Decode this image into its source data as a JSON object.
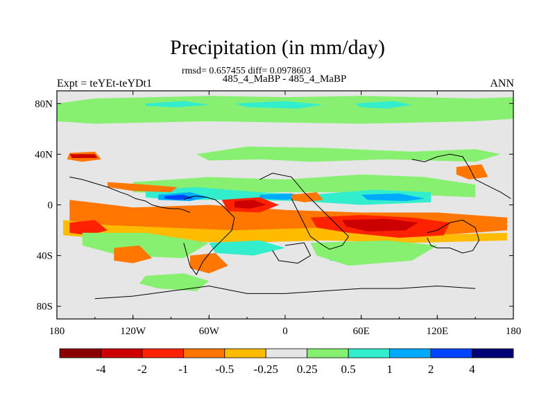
{
  "chart_data": {
    "type": "heatmap",
    "title": "Precipitation (in mm/day)",
    "stats_line": "rmsd= 0.657455 diff= 0.0978603",
    "case_line": "485_4_MaBP - 485_4_MaBP",
    "left_label": "Expt = teYEt-teYDt1",
    "right_label": "ANN",
    "projection": "cylindrical equidistant",
    "xlim": [
      -180,
      180
    ],
    "ylim": [
      -90,
      90
    ],
    "x_ticks": [
      {
        "value": -180,
        "label": "180"
      },
      {
        "value": -120,
        "label": "120W"
      },
      {
        "value": -60,
        "label": "60W"
      },
      {
        "value": 0,
        "label": "0"
      },
      {
        "value": 60,
        "label": "60E"
      },
      {
        "value": 120,
        "label": "120E"
      },
      {
        "value": 180,
        "label": "180"
      }
    ],
    "y_ticks": [
      {
        "value": 80,
        "label": "80N"
      },
      {
        "value": 40,
        "label": "40N"
      },
      {
        "value": 0,
        "label": "0"
      },
      {
        "value": -40,
        "label": "40S"
      },
      {
        "value": -80,
        "label": "80S"
      }
    ],
    "colorbar": {
      "levels": [
        {
          "value": -4,
          "label": "-4"
        },
        {
          "value": -2,
          "label": "-2"
        },
        {
          "value": -1,
          "label": "-1"
        },
        {
          "value": -0.5,
          "label": "-0.5"
        },
        {
          "value": -0.25,
          "label": "-0.25"
        },
        {
          "value": 0.25,
          "label": "0.25"
        },
        {
          "value": 0.5,
          "label": "0.5"
        },
        {
          "value": 1,
          "label": "1"
        },
        {
          "value": 2,
          "label": "2"
        },
        {
          "value": 4,
          "label": "4"
        }
      ],
      "colors": [
        "#8b0000",
        "#cc0000",
        "#ff2200",
        "#ff7700",
        "#ffbb00",
        "#e6e6e6",
        "#88f070",
        "#33eecc",
        "#00aaff",
        "#0044ff",
        "#000077"
      ]
    },
    "regions": [
      {
        "name": "arctic-band",
        "bin": 6,
        "lon": [
          -150,
          -60,
          0,
          60,
          150,
          180,
          180,
          150,
          60,
          0,
          -60,
          -150,
          -180,
          -180
        ],
        "lat": [
          84,
          86,
          85,
          86,
          84,
          85,
          68,
          66,
          64,
          65,
          66,
          64,
          66,
          80
        ]
      },
      {
        "name": "arctic-cyan-1",
        "bin": 7,
        "lon": [
          -110,
          -80,
          -60,
          -85,
          -110
        ],
        "lat": [
          80,
          82,
          79,
          77,
          78
        ]
      },
      {
        "name": "arctic-cyan-2",
        "bin": 7,
        "lon": [
          -40,
          0,
          30,
          10,
          -30
        ],
        "lat": [
          80,
          82,
          79,
          76,
          77
        ]
      },
      {
        "name": "arctic-cyan-3",
        "bin": 7,
        "lon": [
          55,
          85,
          100,
          80,
          60
        ],
        "lat": [
          80,
          82,
          79,
          76,
          77
        ]
      },
      {
        "name": "midlat-nh-green",
        "bin": 6,
        "lon": [
          -70,
          -30,
          30,
          100,
          150,
          170,
          150,
          80,
          20,
          -20,
          -60
        ],
        "lat": [
          40,
          46,
          45,
          42,
          44,
          40,
          34,
          36,
          34,
          36,
          35
        ]
      },
      {
        "name": "nh-green-band",
        "bin": 6,
        "lon": [
          -120,
          -60,
          0,
          60,
          110,
          150,
          150,
          100,
          40,
          -20,
          -80,
          -120
        ],
        "lat": [
          18,
          22,
          20,
          24,
          22,
          16,
          6,
          8,
          10,
          10,
          9,
          10
        ]
      },
      {
        "name": "nh-cyan-band",
        "bin": 7,
        "lon": [
          -110,
          -70,
          -20,
          20,
          70,
          115,
          115,
          60,
          10,
          -40,
          -90,
          -110
        ],
        "lat": [
          12,
          14,
          10,
          8,
          12,
          10,
          2,
          0,
          3,
          4,
          4,
          6
        ]
      },
      {
        "name": "nh-blue-1",
        "bin": 8,
        "lon": [
          -100,
          -75,
          -60,
          -75,
          -100
        ],
        "lat": [
          8,
          10,
          6,
          3,
          4
        ]
      },
      {
        "name": "nh-blue-2",
        "bin": 8,
        "lon": [
          -20,
          5,
          15,
          0,
          -20
        ],
        "lat": [
          8,
          9,
          6,
          4,
          5
        ]
      },
      {
        "name": "nh-blue-3",
        "bin": 8,
        "lon": [
          60,
          90,
          110,
          95,
          65
        ],
        "lat": [
          8,
          9,
          5,
          3,
          4
        ]
      },
      {
        "name": "nh-deep-blue",
        "bin": 9,
        "lon": [
          -95,
          -80,
          -72,
          -85,
          -95
        ],
        "lat": [
          7,
          8,
          5,
          4,
          5
        ]
      },
      {
        "name": "equatorial-orange",
        "bin": 3,
        "lon": [
          -170,
          -120,
          -60,
          0,
          60,
          120,
          175,
          175,
          120,
          40,
          -20,
          -80,
          -140,
          -170
        ],
        "lat": [
          4,
          -2,
          0,
          -4,
          -6,
          -6,
          -10,
          -20,
          -24,
          -22,
          -26,
          -24,
          -22,
          -14
        ]
      },
      {
        "name": "equatorial-yellow",
        "bin": 4,
        "lon": [
          -175,
          -140,
          -90,
          -40,
          30,
          100,
          175,
          175,
          100,
          30,
          -40,
          -100,
          -150,
          -175
        ],
        "lat": [
          -12,
          -16,
          -18,
          -20,
          -18,
          -24,
          -22,
          -28,
          -30,
          -28,
          -30,
          -28,
          -26,
          -24
        ]
      },
      {
        "name": "indian-red",
        "bin": 2,
        "lon": [
          20,
          60,
          100,
          130,
          125,
          90,
          50,
          25
        ],
        "lat": [
          -10,
          -8,
          -10,
          -14,
          -24,
          -26,
          -22,
          -18
        ]
      },
      {
        "name": "indian-darkred",
        "bin": 1,
        "lon": [
          45,
          80,
          105,
          95,
          65,
          48
        ],
        "lat": [
          -12,
          -11,
          -14,
          -20,
          -21,
          -17
        ]
      },
      {
        "name": "atlantic-red",
        "bin": 2,
        "lon": [
          -50,
          -20,
          -5,
          -20,
          -45
        ],
        "lat": [
          4,
          6,
          0,
          -6,
          -5
        ]
      },
      {
        "name": "atlantic-darkred",
        "bin": 1,
        "lon": [
          -40,
          -25,
          -15,
          -28,
          -40
        ],
        "lat": [
          3,
          4,
          0,
          -3,
          -2
        ]
      },
      {
        "name": "east-pacific-red",
        "bin": 2,
        "lon": [
          -170,
          -150,
          -140,
          -155,
          -170
        ],
        "lat": [
          -14,
          -12,
          -20,
          -24,
          -22
        ]
      },
      {
        "name": "sh-cyan-1",
        "bin": 7,
        "lon": [
          -60,
          -20,
          0,
          -25,
          -55
        ],
        "lat": [
          -30,
          -28,
          -34,
          -40,
          -38
        ]
      },
      {
        "name": "sh-cyan-2",
        "bin": 7,
        "lon": [
          35,
          60,
          75,
          55,
          35
        ],
        "lat": [
          -36,
          -34,
          -42,
          -46,
          -44
        ]
      },
      {
        "name": "sh-green-1",
        "bin": 6,
        "lon": [
          -160,
          -110,
          -60,
          -80,
          -130,
          -160
        ],
        "lat": [
          -22,
          -22,
          -30,
          -42,
          -40,
          -32
        ]
      },
      {
        "name": "sh-green-2",
        "bin": 6,
        "lon": [
          20,
          80,
          120,
          100,
          50,
          25
        ],
        "lat": [
          -30,
          -28,
          -32,
          -44,
          -48,
          -40
        ]
      },
      {
        "name": "sh-orange-1",
        "bin": 3,
        "lon": [
          -135,
          -115,
          -105,
          -120,
          -135
        ],
        "lat": [
          -34,
          -32,
          -42,
          -46,
          -44
        ]
      },
      {
        "name": "sh-orange-2",
        "bin": 3,
        "lon": [
          -75,
          -55,
          -45,
          -60,
          -75
        ],
        "lat": [
          -40,
          -38,
          -48,
          -54,
          -50
        ]
      },
      {
        "name": "southern-green",
        "bin": 6,
        "lon": [
          -110,
          -80,
          -60,
          -70,
          -100,
          -115
        ],
        "lat": [
          -56,
          -54,
          -60,
          -68,
          -66,
          -62
        ]
      },
      {
        "name": "nh-orange-1",
        "bin": 3,
        "lon": [
          -140,
          -110,
          -85,
          -90,
          -120,
          -140
        ],
        "lat": [
          18,
          16,
          14,
          10,
          11,
          14
        ]
      },
      {
        "name": "nh-orange-2",
        "bin": 3,
        "lon": [
          -170,
          -150,
          -145,
          -160,
          -172
        ],
        "lat": [
          41,
          42,
          36,
          34,
          36
        ]
      },
      {
        "name": "nh-darkred",
        "bin": 1,
        "lon": [
          -170,
          -150,
          -148,
          -168
        ],
        "lat": [
          40,
          40,
          37,
          37
        ]
      },
      {
        "name": "w-africa-orange",
        "bin": 3,
        "lon": [
          5,
          25,
          30,
          15,
          5
        ],
        "lat": [
          8,
          10,
          4,
          2,
          4
        ]
      },
      {
        "name": "se-asia-orange",
        "bin": 3,
        "lon": [
          135,
          155,
          160,
          145,
          135
        ],
        "lat": [
          30,
          32,
          22,
          20,
          24
        ]
      }
    ],
    "coastlines": [
      {
        "name": "north-america",
        "lon": [
          -170,
          -160,
          -150,
          -140,
          -130,
          -124,
          -118,
          -110,
          -105,
          -97,
          -90,
          -84,
          -80,
          -75
        ],
        "lat": [
          22,
          20,
          17,
          14,
          10,
          8,
          5,
          3,
          0,
          -2,
          -3,
          -3,
          -4,
          -6
        ]
      },
      {
        "name": "south-america",
        "lon": [
          -80,
          -76,
          -70,
          -62,
          -55,
          -50,
          -45,
          -40,
          -42,
          -50,
          -58,
          -65,
          -70,
          -75,
          -80
        ],
        "lat": [
          4,
          6,
          7,
          6,
          4,
          0,
          -5,
          -10,
          -20,
          -28,
          -36,
          -45,
          -55,
          -48,
          -30
        ]
      },
      {
        "name": "africa",
        "lon": [
          -20,
          -10,
          5,
          15,
          30,
          40,
          50,
          45,
          35,
          30,
          20,
          15,
          10,
          5
        ],
        "lat": [
          20,
          25,
          22,
          10,
          -5,
          -15,
          -25,
          -32,
          -35,
          -32,
          -25,
          -15,
          -5,
          5
        ]
      },
      {
        "name": "asia-east",
        "lon": [
          100,
          110,
          120,
          130,
          140,
          145,
          150,
          160,
          170,
          178
        ],
        "lat": [
          36,
          34,
          38,
          40,
          38,
          30,
          20,
          15,
          10,
          5
        ]
      },
      {
        "name": "australia",
        "lon": [
          112,
          120,
          130,
          140,
          150,
          153,
          148,
          140,
          130,
          120,
          115,
          112
        ],
        "lat": [
          -22,
          -20,
          -14,
          -12,
          -18,
          -28,
          -36,
          -38,
          -34,
          -34,
          -32,
          -26
        ]
      },
      {
        "name": "antarctica",
        "lon": [
          -150,
          -120,
          -90,
          -60,
          -30,
          0,
          30,
          60,
          90,
          120,
          150
        ],
        "lat": [
          -74,
          -72,
          -68,
          -64,
          -70,
          -70,
          -68,
          -66,
          -66,
          -64,
          -66
        ]
      },
      {
        "name": "southern-island",
        "lon": [
          0,
          15,
          20,
          10,
          -5,
          -10
        ],
        "lat": [
          -32,
          -30,
          -40,
          -46,
          -44,
          -36
        ]
      }
    ]
  }
}
